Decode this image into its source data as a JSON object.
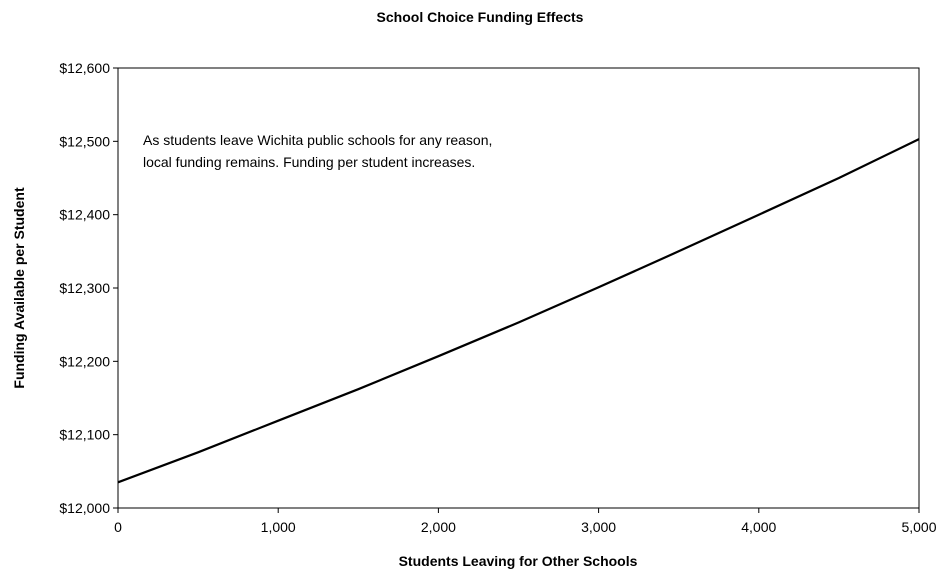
{
  "chart_data": {
    "type": "line",
    "title": "School Choice Funding Effects",
    "xlabel": "Students Leaving for Other Schools",
    "ylabel": "Funding Available per Student",
    "xlim": [
      0,
      5000
    ],
    "ylim": [
      12000,
      12600
    ],
    "x_ticks": [
      0,
      1000,
      2000,
      3000,
      4000,
      5000
    ],
    "x_tick_labels": [
      "0",
      "1,000",
      "2,000",
      "3,000",
      "4,000",
      "5,000"
    ],
    "y_ticks": [
      12000,
      12100,
      12200,
      12300,
      12400,
      12500,
      12600
    ],
    "y_tick_labels": [
      "$12,000",
      "$12,100",
      "$12,200",
      "$12,300",
      "$12,400",
      "$12,500",
      "$12,600"
    ],
    "grid": false,
    "legend": "none",
    "series": [
      {
        "x": [
          0,
          500,
          1000,
          1500,
          2000,
          2500,
          3000,
          3500,
          4000,
          4500,
          5000
        ],
        "values": [
          12035,
          12076,
          12119,
          12162,
          12207,
          12253,
          12301,
          12350,
          12400,
          12450,
          12503
        ]
      }
    ],
    "annotation": {
      "lines": [
        "As students leave Wichita public schools for any reason,",
        "local funding remains. Funding per student increases."
      ]
    },
    "colors": {
      "line": "#000000",
      "axis": "#000000",
      "background": "#ffffff"
    }
  }
}
